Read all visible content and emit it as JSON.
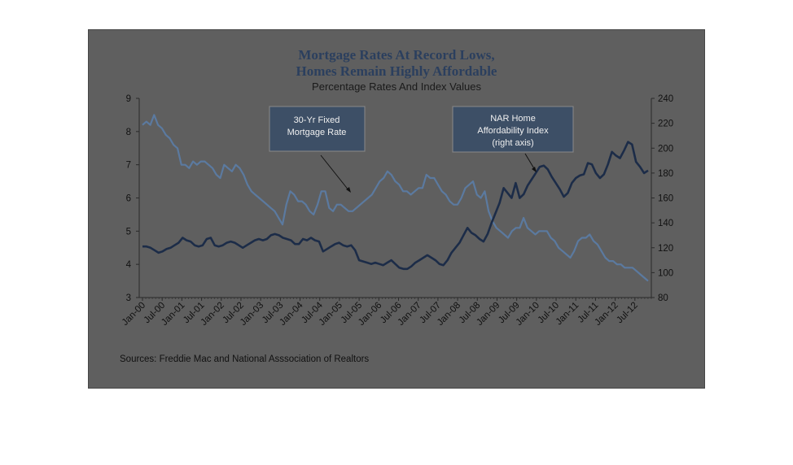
{
  "chart_data": {
    "type": "line",
    "title_lines": [
      "Mortgage Rates At Record Lows,",
      "Homes Remain Highly Affordable"
    ],
    "subtitle": "Percentage Rates And Index Values",
    "source": "Sources:  Freddie Mac and National Asssociation of Realtors",
    "x_tick_labels": [
      "Jan-00",
      "Jul-00",
      "Jan-01",
      "Jul-01",
      "Jan-02",
      "Jul-02",
      "Jan-03",
      "Jul-03",
      "Jan-04",
      "Jul-04",
      "Jan-05",
      "Jul-05",
      "Jan-06",
      "Jul-06",
      "Jan-07",
      "Jul-07",
      "Jan-08",
      "Jul-08",
      "Jan-09",
      "Jul-09",
      "Jan-10",
      "Jul-10",
      "Jan-11",
      "Jul-11",
      "Jan-12",
      "Jul-12"
    ],
    "y_left": {
      "min": 3,
      "max": 9,
      "ticks": [
        3,
        4,
        5,
        6,
        7,
        8,
        9
      ]
    },
    "y_right": {
      "min": 80,
      "max": 240,
      "ticks": [
        80,
        100,
        120,
        140,
        160,
        180,
        200,
        220,
        240
      ]
    },
    "grid": false,
    "series": [
      {
        "name": "30-Yr Fixed Mortgage Rate",
        "axis": "left",
        "color": "#5b7aa0",
        "values": [
          8.2,
          8.3,
          8.2,
          8.5,
          8.2,
          8.1,
          7.9,
          7.8,
          7.6,
          7.5,
          7.0,
          7.0,
          6.9,
          7.1,
          7.0,
          7.1,
          7.1,
          7.0,
          6.9,
          6.7,
          6.6,
          7.0,
          6.9,
          6.8,
          7.0,
          6.9,
          6.7,
          6.4,
          6.2,
          6.1,
          6.0,
          5.9,
          5.8,
          5.7,
          5.6,
          5.4,
          5.2,
          5.8,
          6.2,
          6.1,
          5.9,
          5.9,
          5.8,
          5.6,
          5.5,
          5.8,
          6.2,
          6.2,
          5.7,
          5.6,
          5.8,
          5.8,
          5.7,
          5.6,
          5.6,
          5.7,
          5.8,
          5.9,
          6.0,
          6.1,
          6.3,
          6.5,
          6.6,
          6.8,
          6.7,
          6.5,
          6.4,
          6.2,
          6.2,
          6.1,
          6.2,
          6.3,
          6.3,
          6.7,
          6.6,
          6.6,
          6.4,
          6.2,
          6.1,
          5.9,
          5.8,
          5.8,
          6.0,
          6.3,
          6.4,
          6.5,
          6.1,
          6.0,
          6.2,
          5.6,
          5.3,
          5.1,
          5.0,
          4.9,
          4.8,
          5.0,
          5.1,
          5.1,
          5.4,
          5.1,
          5.0,
          4.9,
          5.0,
          5.0,
          5.0,
          4.8,
          4.7,
          4.5,
          4.4,
          4.3,
          4.2,
          4.4,
          4.7,
          4.8,
          4.8,
          4.9,
          4.7,
          4.6,
          4.4,
          4.2,
          4.1,
          4.1,
          4.0,
          4.0,
          3.9,
          3.9,
          3.9,
          3.8,
          3.7,
          3.6,
          3.5
        ]
      },
      {
        "name": "NAR Home Affordability Index (right axis)",
        "axis": "right",
        "color": "#1c2c48",
        "values": [
          121,
          121,
          120,
          118,
          116,
          117,
          119,
          120,
          122,
          124,
          128,
          126,
          125,
          122,
          121,
          122,
          127,
          128,
          122,
          121,
          122,
          124,
          125,
          124,
          122,
          120,
          122,
          124,
          126,
          127,
          126,
          127,
          130,
          131,
          130,
          128,
          127,
          126,
          123,
          123,
          127,
          126,
          128,
          126,
          125,
          117,
          119,
          121,
          123,
          124,
          122,
          121,
          122,
          118,
          110,
          109,
          108,
          107,
          108,
          107,
          106,
          108,
          110,
          107,
          104,
          103,
          103,
          105,
          108,
          110,
          112,
          114,
          112,
          110,
          107,
          106,
          110,
          116,
          120,
          124,
          130,
          136,
          132,
          130,
          127,
          125,
          131,
          140,
          148,
          156,
          168,
          164,
          160,
          172,
          160,
          163,
          170,
          175,
          180,
          185,
          186,
          183,
          177,
          172,
          167,
          161,
          164,
          172,
          176,
          178,
          179,
          188,
          187,
          180,
          176,
          179,
          187,
          197,
          194,
          192,
          198,
          205,
          203,
          189,
          185,
          180,
          182
        ]
      }
    ],
    "annotations": [
      {
        "lines": [
          "30-Yr Fixed",
          "Mortgage Rate"
        ]
      },
      {
        "lines": [
          "NAR Home",
          "Affordability Index",
          "(right axis)"
        ]
      }
    ]
  }
}
